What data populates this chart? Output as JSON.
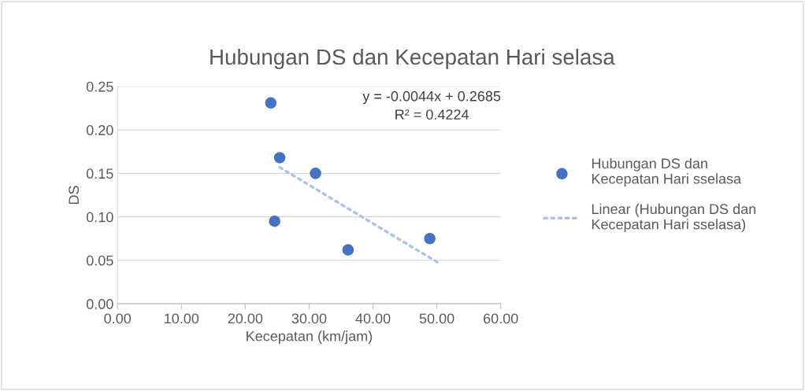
{
  "chart_data": {
    "type": "scatter",
    "title": "Hubungan DS dan Kecepatan Hari selasa",
    "xlabel": "Kecepatan (km/jam)",
    "ylabel": "DS",
    "series": [
      {
        "name": "Hubungan DS dan\nKecepatan Hari sselasa",
        "color": "#4472c4",
        "marker": "circle",
        "x": [
          24.0,
          25.4,
          31.0,
          24.6,
          36.1,
          48.9
        ],
        "values": [
          0.231,
          0.168,
          0.15,
          0.095,
          0.062,
          0.075
        ]
      },
      {
        "name": "Linear (Hubungan DS dan\nKecepatan Hari sselasa)",
        "type": "line",
        "color": "#a9c4e8",
        "line_style": "dotted",
        "x": [
          25.4,
          50.5
        ],
        "values": [
          0.157,
          0.046
        ]
      }
    ],
    "annotations": [
      "y = -0.0044x + 0.2685\nR² = 0.4224"
    ],
    "xlim": [
      0,
      60
    ],
    "xticks": [
      {
        "value": 0,
        "label": "0.00"
      },
      {
        "value": 10,
        "label": "10.00"
      },
      {
        "value": 20,
        "label": "20.00"
      },
      {
        "value": 30,
        "label": "30.00"
      },
      {
        "value": 40,
        "label": "40.00"
      },
      {
        "value": 50,
        "label": "50.00"
      },
      {
        "value": 60,
        "label": "60.00"
      }
    ],
    "ylim": [
      0,
      0.25
    ],
    "yticks": [
      {
        "value": 0,
        "label": "0.00"
      },
      {
        "value": 0.05,
        "label": "0.05"
      },
      {
        "value": 0.1,
        "label": "0.10"
      },
      {
        "value": 0.15,
        "label": "0.15"
      },
      {
        "value": 0.2,
        "label": "0.20"
      },
      {
        "value": 0.25,
        "label": "0.25"
      }
    ],
    "grid": "y",
    "legend": "right"
  }
}
